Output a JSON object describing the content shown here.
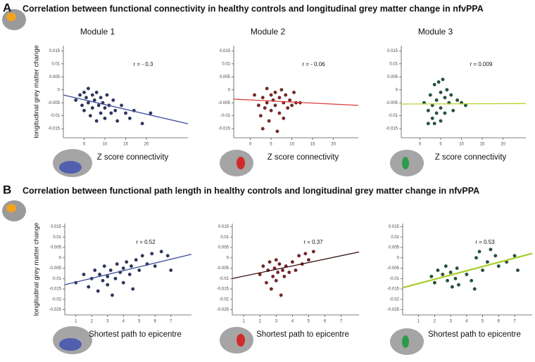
{
  "panels": [
    {
      "letter": "A",
      "title": "Correlation between functional connectivity in healthy controls and longitudinal grey matter change in nfvPPA"
    },
    {
      "letter": "B",
      "title": "Correlation between functional path length in healthy controls and longitudinal grey matter change in nfvPPA"
    }
  ],
  "chart_data": [
    {
      "type": "scatter",
      "title": "Module 1",
      "x_label": "Z score connectivity",
      "y_label": "longitudinal grey matter change",
      "annotation": "r = - 0.3",
      "xlim": [
        0,
        30
      ],
      "ylim": [
        -0.0185,
        0.017
      ],
      "xticks": [
        5,
        10,
        15,
        20
      ],
      "yticks": [
        0.015,
        0.01,
        0.005,
        0,
        -0.005,
        -0.01,
        -0.015
      ],
      "color": "#2b3868",
      "fit_color": "#3d4c9c",
      "x": [
        3,
        4,
        4.5,
        5,
        5,
        5.5,
        6,
        6,
        6.5,
        7,
        7,
        7.5,
        8,
        8,
        8.5,
        9,
        9,
        9.5,
        10,
        10,
        10.5,
        11,
        11.5,
        12,
        12.5,
        13,
        14,
        15,
        16,
        17,
        19,
        21
      ],
      "values": [
        -0.004,
        -0.002,
        -0.006,
        -0.001,
        -0.008,
        -0.003,
        0.0005,
        -0.005,
        -0.01,
        -0.002,
        -0.007,
        -0.004,
        -0.012,
        -0.001,
        -0.006,
        -0.003,
        -0.009,
        -0.005,
        -0.007,
        -0.011,
        -0.002,
        -0.006,
        -0.009,
        -0.004,
        -0.008,
        -0.012,
        -0.006,
        -0.009,
        -0.011,
        -0.008,
        -0.013,
        -0.009
      ],
      "fit_x": [
        0,
        30
      ],
      "fit_y": [
        -0.002,
        -0.0131
      ]
    },
    {
      "type": "scatter",
      "title": "Module 2",
      "x_label": "Z score connectivity",
      "annotation": "r = - 0.06",
      "xlim": [
        -4,
        26
      ],
      "ylim": [
        -0.0185,
        0.017
      ],
      "xticks": [
        0,
        5,
        10,
        15,
        20
      ],
      "yticks": [
        0.015,
        0.01,
        0.005,
        0,
        -0.005,
        -0.01,
        -0.015
      ],
      "color": "#8a2222",
      "fit_color": "#e03a3a",
      "x": [
        1,
        2,
        2.5,
        3,
        3,
        3.5,
        4,
        4,
        4.5,
        5,
        5,
        5.5,
        6,
        6,
        6.5,
        7,
        7,
        7.5,
        8,
        8,
        8.5,
        9,
        9.5,
        10,
        10.5,
        11,
        12
      ],
      "values": [
        -0.002,
        -0.006,
        -0.01,
        -0.003,
        -0.015,
        -0.007,
        0.0005,
        -0.005,
        -0.012,
        -0.002,
        -0.008,
        -0.004,
        -0.001,
        -0.006,
        -0.016,
        -0.003,
        -0.009,
        0,
        -0.005,
        -0.011,
        -0.002,
        -0.007,
        -0.004,
        -0.006,
        -0.001,
        -0.005,
        -0.005
      ],
      "fit_x": [
        -4,
        26
      ],
      "fit_y": [
        -0.0036,
        -0.006
      ]
    },
    {
      "type": "scatter",
      "title": "Module 3",
      "x_label": "Z score connectivity",
      "annotation": "r = 0.009",
      "xlim": [
        -4.5,
        25.5
      ],
      "ylim": [
        -0.0185,
        0.017
      ],
      "xticks": [
        0,
        5,
        10,
        15,
        20
      ],
      "yticks": [
        0.015,
        0.01,
        0.005,
        0,
        -0.005,
        -0.01,
        -0.015
      ],
      "color": "#1f5a3a",
      "fit_color": "#b5d334",
      "x": [
        1,
        2,
        2,
        2.5,
        3,
        3,
        3.5,
        3.5,
        4,
        4,
        4.5,
        5,
        5,
        5,
        5.5,
        6,
        6,
        6.5,
        7,
        7.5,
        8,
        9,
        10,
        11
      ],
      "values": [
        -0.005,
        -0.008,
        -0.013,
        -0.002,
        -0.011,
        -0.006,
        0.002,
        -0.013,
        -0.004,
        -0.009,
        0.003,
        -0.001,
        -0.007,
        -0.012,
        0.004,
        -0.003,
        -0.009,
        0,
        -0.005,
        -0.002,
        -0.008,
        -0.004,
        -0.005,
        -0.006
      ],
      "fit_x": [
        -4.5,
        25.5
      ],
      "fit_y": [
        -0.0055,
        -0.0053
      ]
    },
    {
      "type": "scatter",
      "x_label": "Shortest path to epicentre",
      "y_label": "longitudinal grey matter change",
      "annotation": "r = 0.52",
      "xlim": [
        0.3,
        8.3
      ],
      "ylim": [
        -0.0275,
        0.0165
      ],
      "xticks": [
        1,
        2,
        3,
        4,
        5,
        6,
        7
      ],
      "yticks": [
        0.015,
        0.01,
        0.005,
        0,
        -0.005,
        -0.01,
        -0.015,
        -0.02,
        -0.025
      ],
      "color": "#2b3868",
      "fit_color": "#3d4c9c",
      "x": [
        1,
        1.5,
        1.8,
        2,
        2.2,
        2.4,
        2.5,
        2.7,
        2.8,
        3,
        3,
        3.2,
        3.3,
        3.5,
        3.6,
        3.8,
        4,
        4,
        4.2,
        4.4,
        4.5,
        4.6,
        4.8,
        5,
        5.2,
        5.5,
        5.8,
        6,
        6.4,
        6.8,
        7
      ],
      "values": [
        -0.012,
        -0.008,
        -0.014,
        -0.01,
        -0.006,
        -0.016,
        -0.008,
        -0.011,
        -0.004,
        -0.009,
        -0.013,
        -0.006,
        -0.018,
        -0.01,
        -0.003,
        -0.007,
        -0.012,
        -0.005,
        -0.002,
        -0.008,
        -0.004,
        -0.015,
        -0.001,
        -0.006,
        0.001,
        -0.003,
        0.002,
        -0.004,
        0.003,
        0.001,
        -0.006
      ],
      "fit_x": [
        0.3,
        8.3
      ],
      "fit_y": [
        -0.013,
        0.0017
      ]
    },
    {
      "type": "scatter",
      "x_label": "Shortest path to epicentre",
      "annotation": "r = 0.37",
      "xlim": [
        0.3,
        8.1
      ],
      "ylim": [
        -0.0275,
        0.0165
      ],
      "xticks": [
        1,
        2,
        3,
        4,
        5,
        6,
        7
      ],
      "yticks": [
        0.015,
        0.01,
        0.005,
        0,
        -0.005,
        -0.01,
        -0.015,
        -0.02,
        -0.025
      ],
      "color": "#8a2222",
      "fit_color": "#3a1010",
      "x": [
        2,
        2.2,
        2.4,
        2.5,
        2.6,
        2.7,
        2.8,
        2.9,
        3,
        3,
        3.1,
        3.2,
        3.3,
        3.4,
        3.5,
        3.6,
        3.8,
        4,
        4.2,
        4.4,
        4.6,
        4.8,
        5,
        5.3
      ],
      "values": [
        -0.008,
        -0.004,
        -0.012,
        -0.006,
        -0.002,
        -0.015,
        -0.009,
        -0.005,
        -0.001,
        -0.011,
        -0.007,
        -0.003,
        -0.018,
        -0.006,
        -0.009,
        -0.004,
        -0.007,
        -0.002,
        -0.006,
        0.001,
        -0.003,
        0.002,
        -0.001,
        0.003
      ],
      "fit_x": [
        0.3,
        8.1
      ],
      "fit_y": [
        -0.01,
        0.0028
      ]
    },
    {
      "type": "scatter",
      "x_label": "Shortest path to epicentre",
      "annotation": "r =  0.53",
      "xlim": [
        0,
        8.1
      ],
      "ylim": [
        -0.0275,
        0.0165
      ],
      "xticks": [
        1,
        2,
        3,
        4,
        5,
        6,
        7
      ],
      "yticks": [
        0.015,
        0.01,
        0.005,
        0,
        -0.005,
        -0.01,
        -0.015,
        -0.02,
        -0.025
      ],
      "color": "#1f5a3a",
      "fit_color": "#a8cc2a",
      "x": [
        1.8,
        2,
        2.2,
        2.5,
        2.7,
        2.8,
        3,
        3.1,
        3.3,
        3.4,
        3.5,
        4,
        4.3,
        4.5,
        4.6,
        4.8,
        5,
        5.3,
        5.5,
        5.8,
        6,
        6.5,
        7,
        7.2
      ],
      "values": [
        -0.009,
        -0.012,
        -0.006,
        -0.008,
        -0.004,
        -0.011,
        -0.007,
        -0.014,
        -0.01,
        -0.005,
        -0.013,
        -0.008,
        -0.011,
        -0.015,
        0,
        0.003,
        -0.006,
        -0.002,
        0.004,
        0.001,
        -0.004,
        -0.002,
        0.001,
        -0.006
      ],
      "fit_x": [
        0,
        8.1
      ],
      "fit_y": [
        -0.0144,
        0.0021
      ]
    }
  ]
}
